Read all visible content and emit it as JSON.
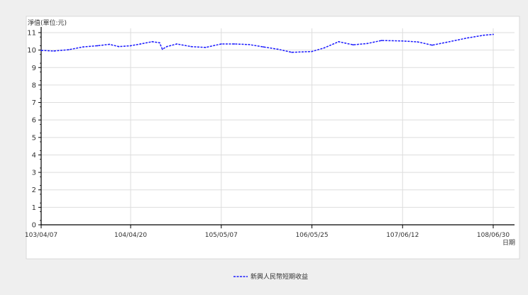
{
  "chart_data": {
    "type": "line",
    "ylabel": "淨值(單位:元)",
    "xlabel": "日期",
    "ylim": [
      0,
      11
    ],
    "yticks": [
      0,
      1,
      2,
      3,
      4,
      5,
      6,
      7,
      8,
      9,
      10,
      11
    ],
    "xticks": [
      "103/04/07",
      "104/04/20",
      "105/05/07",
      "106/05/25",
      "107/06/12",
      "108/06/30"
    ],
    "grid": true,
    "legend_position": "bottom-center",
    "series": [
      {
        "name": "新興人民幣短期收益",
        "color": "#1a1aff",
        "points": [
          [
            "103/04/07",
            9.98
          ],
          [
            "103/06/01",
            9.95
          ],
          [
            "103/08/01",
            10.02
          ],
          [
            "103/10/01",
            10.18
          ],
          [
            "103/12/01",
            10.25
          ],
          [
            "104/01/20",
            10.33
          ],
          [
            "104/03/01",
            10.2
          ],
          [
            "104/04/20",
            10.25
          ],
          [
            "104/06/01",
            10.35
          ],
          [
            "104/07/20",
            10.48
          ],
          [
            "104/08/20",
            10.42
          ],
          [
            "104/09/01",
            10.05
          ],
          [
            "104/09/20",
            10.2
          ],
          [
            "104/11/01",
            10.35
          ],
          [
            "105/01/01",
            10.2
          ],
          [
            "105/03/01",
            10.15
          ],
          [
            "105/05/07",
            10.35
          ],
          [
            "105/07/01",
            10.35
          ],
          [
            "105/09/01",
            10.32
          ],
          [
            "105/11/01",
            10.18
          ],
          [
            "106/01/01",
            10.05
          ],
          [
            "106/03/01",
            9.87
          ],
          [
            "106/05/25",
            9.92
          ],
          [
            "106/07/15",
            10.12
          ],
          [
            "106/09/15",
            10.48
          ],
          [
            "106/11/15",
            10.3
          ],
          [
            "107/01/15",
            10.38
          ],
          [
            "107/03/15",
            10.55
          ],
          [
            "107/06/12",
            10.52
          ],
          [
            "107/08/15",
            10.47
          ],
          [
            "107/10/15",
            10.28
          ],
          [
            "107/12/15",
            10.45
          ],
          [
            "108/03/15",
            10.7
          ],
          [
            "108/05/20",
            10.85
          ],
          [
            "108/06/30",
            10.9
          ]
        ]
      }
    ]
  }
}
